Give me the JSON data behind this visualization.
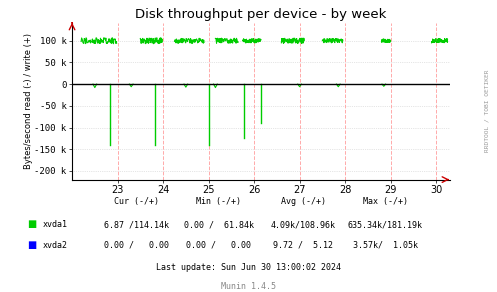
{
  "title": "Disk throughput per device - by week",
  "ylabel": "Bytes/second read (-) / write (+)",
  "background_color": "#ffffff",
  "plot_bg_color": "#ffffff",
  "xmin": 22.0,
  "xmax": 30.3,
  "ymin": -220000,
  "ymax": 140000,
  "yticks": [
    -200000,
    -150000,
    -100000,
    -50000,
    0,
    50000,
    100000
  ],
  "ytick_labels": [
    "-200 k",
    "-150 k",
    "-100 k",
    "-50 k",
    "0",
    "50 k",
    "100 k"
  ],
  "xticks": [
    23,
    24,
    25,
    26,
    27,
    28,
    29,
    30
  ],
  "vlines_x": [
    23,
    24,
    25,
    26,
    27,
    28,
    29,
    30
  ],
  "vline_color": "#ffaaaa",
  "xvda1_color": "#00cc00",
  "xvda2_color": "#0000ff",
  "right_label": "RRDTOOL / TOBI OETIKER",
  "last_update": "Last update: Sun Jun 30 13:00:02 2024",
  "munin_label": "Munin 1.4.5",
  "noise_regions": [
    {
      "x_start": 22.2,
      "x_end": 22.98,
      "base": 100000,
      "amplitude": 7000
    },
    {
      "x_start": 23.5,
      "x_end": 23.98,
      "base": 100000,
      "amplitude": 7000
    },
    {
      "x_start": 24.25,
      "x_end": 24.9,
      "base": 100000,
      "amplitude": 6000
    },
    {
      "x_start": 25.15,
      "x_end": 25.65,
      "base": 100000,
      "amplitude": 6000
    },
    {
      "x_start": 25.75,
      "x_end": 26.15,
      "base": 100000,
      "amplitude": 5000
    },
    {
      "x_start": 26.6,
      "x_end": 27.1,
      "base": 100000,
      "amplitude": 6000
    },
    {
      "x_start": 27.5,
      "x_end": 27.95,
      "base": 100000,
      "amplitude": 5000
    },
    {
      "x_start": 28.8,
      "x_end": 29.0,
      "base": 100000,
      "amplitude": 4000
    },
    {
      "x_start": 29.9,
      "x_end": 30.25,
      "base": 100000,
      "amplitude": 5000
    }
  ],
  "spikes_down": [
    {
      "x": 22.83,
      "depth": -140000
    },
    {
      "x": 23.83,
      "depth": -140000
    },
    {
      "x": 25.0,
      "depth": -140000
    },
    {
      "x": 25.78,
      "depth": -125000
    },
    {
      "x": 26.15,
      "depth": -90000
    }
  ],
  "tiny_dips": [
    {
      "x": 22.5,
      "depth": -8000
    },
    {
      "x": 23.3,
      "depth": -6000
    },
    {
      "x": 24.5,
      "depth": -7000
    },
    {
      "x": 25.15,
      "depth": -8000
    },
    {
      "x": 27.0,
      "depth": -6000
    },
    {
      "x": 27.85,
      "depth": -6000
    },
    {
      "x": 28.85,
      "depth": -5000
    }
  ],
  "header_cols": [
    "Cur (-/+)",
    "Min (-/+)",
    "Avg (-/+)",
    "Max (-/+)"
  ],
  "row1_vals": [
    "6.87 /114.14k",
    "0.00 /  61.84k",
    "4.09k/108.96k",
    "635.34k/181.19k"
  ],
  "row2_vals": [
    "0.00 /   0.00",
    "0.00 /   0.00",
    "9.72 /  5.12",
    "3.57k/  1.05k"
  ]
}
